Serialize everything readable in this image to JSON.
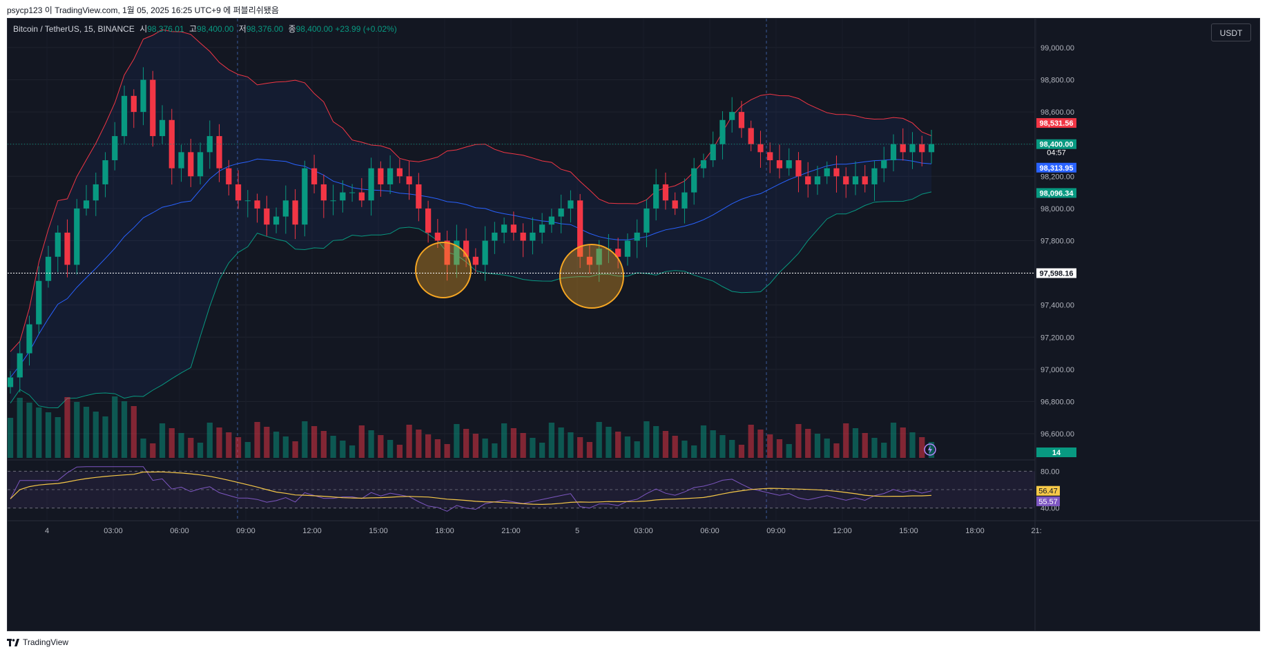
{
  "header": {
    "published_line": "psycp123 이 TradingView.com, 1월 05, 2025 16:25 UTC+9 에 퍼블리쉬됐음"
  },
  "symbol": {
    "name": "Bitcoin / TetherUS, 15, BINANCE",
    "open_label": "시",
    "open": "98,376.01",
    "high_label": "고",
    "high": "98,400.00",
    "low_label": "저",
    "low": "98,376.00",
    "close_label": "종",
    "close": "98,400.00",
    "change": "+23.99 (+0.02%)"
  },
  "currency_button": "USDT",
  "price_axis": {
    "ticks": [
      "99,000.00",
      "98,800.00",
      "98,600.00",
      "98,400.00",
      "98,200.00",
      "98,000.00",
      "97,800.00",
      "97,600.00",
      "97,400.00",
      "97,200.00",
      "97,000.00",
      "96,800.00",
      "96,600.00"
    ],
    "labels": {
      "bb_upper": "98,531.56",
      "last_price": "98,400.00",
      "countdown": "04:57",
      "bb_basis": "98,313.95",
      "bb_lower": "98,096.34",
      "crosshair": "97,598.16",
      "volume": "14"
    }
  },
  "rsi_axis": {
    "ticks": [
      "80.00",
      "40.00"
    ],
    "rsi_ma": "56.47",
    "rsi": "55.57"
  },
  "time_axis": [
    "4",
    "03:00",
    "06:00",
    "09:00",
    "12:00",
    "15:00",
    "18:00",
    "21:00",
    "5",
    "03:00",
    "06:00",
    "09:00",
    "12:00",
    "15:00",
    "18:00",
    "21:"
  ],
  "footer": {
    "brand": "TradingView"
  },
  "colors": {
    "up": "#089981",
    "down": "#f23645",
    "bb_upper": "#f23645",
    "bb_basis": "#2962ff",
    "bb_lower": "#089981",
    "rsi": "#7e57c2",
    "rsi_ma": "#f7c948",
    "highlight": "#f5a623"
  },
  "chart_data": {
    "type": "candlestick",
    "instrument": "Bitcoin / TetherUS, 15, BINANCE",
    "ylim": [
      96450,
      99180
    ],
    "x_ticks": [
      "4",
      "03:00",
      "06:00",
      "09:00",
      "12:00",
      "15:00",
      "18:00",
      "21:00",
      "5",
      "03:00",
      "06:00",
      "09:00",
      "12:00",
      "15:00",
      "18:00",
      "21:"
    ],
    "candles_close": [
      96950,
      97100,
      97280,
      97550,
      97700,
      97850,
      97650,
      98000,
      98050,
      98150,
      98300,
      98450,
      98700,
      98600,
      98800,
      98450,
      98550,
      98250,
      98350,
      98200,
      98350,
      98450,
      98250,
      98150,
      98050,
      98050,
      98000,
      97900,
      97950,
      98050,
      97900,
      98250,
      98150,
      98050,
      98050,
      98100,
      98100,
      98050,
      98250,
      98150,
      98250,
      98200,
      98150,
      98000,
      97850,
      97800,
      97650,
      97800,
      97700,
      97650,
      97800,
      97850,
      97900,
      97850,
      97800,
      97850,
      97900,
      97950,
      98000,
      98050,
      97700,
      97650,
      97750,
      97750,
      97700,
      97800,
      97850,
      98000,
      98150,
      98050,
      98000,
      98100,
      98250,
      98300,
      98400,
      98550,
      98600,
      98500,
      98400,
      98350,
      98300,
      98250,
      98300,
      98200,
      98150,
      98200,
      98250,
      98200,
      98150,
      98200,
      98150,
      98250,
      98300,
      98400,
      98350,
      98400,
      98350,
      98400
    ],
    "bollinger": {
      "upper_last": 98531.56,
      "basis_last": 98313.95,
      "lower_last": 98096.34
    },
    "last_price": 98400.0,
    "volume_last": 14,
    "rsi": {
      "levels": [
        80,
        40
      ],
      "rsi_last": 55.57,
      "rsi_ma_last": 56.47
    }
  }
}
